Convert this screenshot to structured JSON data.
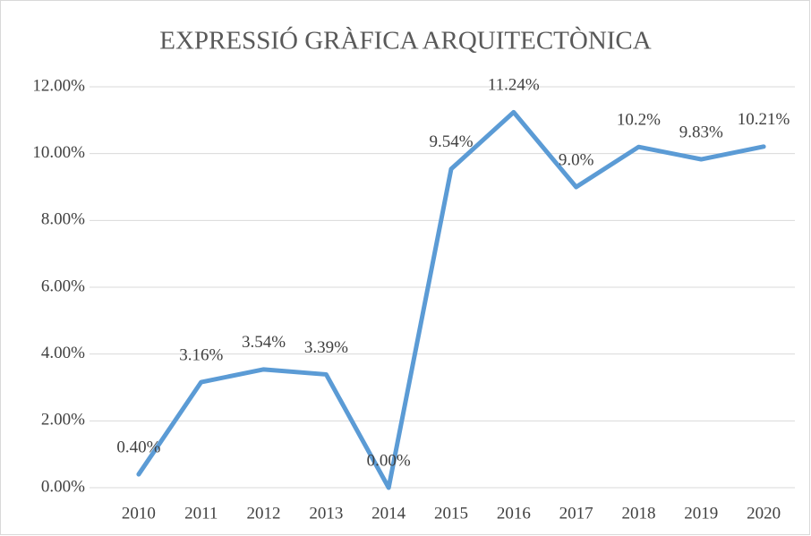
{
  "chart_data": {
    "type": "line",
    "title": "EXPRESSIÓ GRÀFICA ARQUITECTÒNICA",
    "categories": [
      "2010",
      "2011",
      "2012",
      "2013",
      "2014",
      "2015",
      "2016",
      "2017",
      "2018",
      "2019",
      "2020"
    ],
    "series": [
      {
        "color": "#5b9bd5",
        "values": [
          0.4,
          3.16,
          3.54,
          3.39,
          0.0,
          9.54,
          11.24,
          9.0,
          10.2,
          9.83,
          10.21
        ],
        "value_labels": [
          "0.40%",
          "3.16%",
          "3.54%",
          "3.39%",
          "0.00%",
          "9.54%",
          "11.24%",
          "9.0%",
          "10.2%",
          "9.83%",
          "10.21%"
        ]
      }
    ],
    "ylim": [
      0,
      12
    ],
    "yticks": [
      {
        "value": 0,
        "label": "0.00%"
      },
      {
        "value": 2,
        "label": "2.00%"
      },
      {
        "value": 4,
        "label": "4.00%"
      },
      {
        "value": 6,
        "label": "6.00%"
      },
      {
        "value": 8,
        "label": "8.00%"
      },
      {
        "value": 10,
        "label": "10.00%"
      },
      {
        "value": 12,
        "label": "12.00%"
      }
    ],
    "grid": true
  }
}
